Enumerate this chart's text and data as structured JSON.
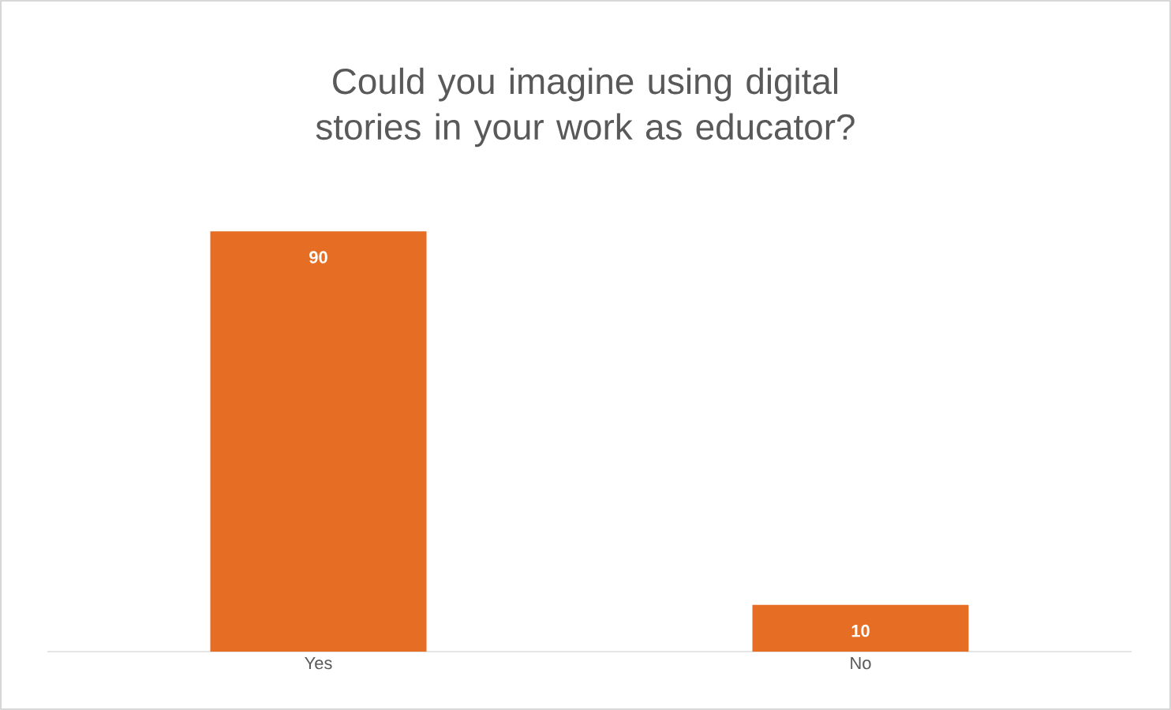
{
  "chart_data": {
    "type": "bar",
    "title": "Could you imagine using digital stories in your work as educator?",
    "categories": [
      "Yes",
      "No"
    ],
    "values": [
      90,
      10
    ],
    "color": "#e56d24",
    "data_labels": true
  }
}
